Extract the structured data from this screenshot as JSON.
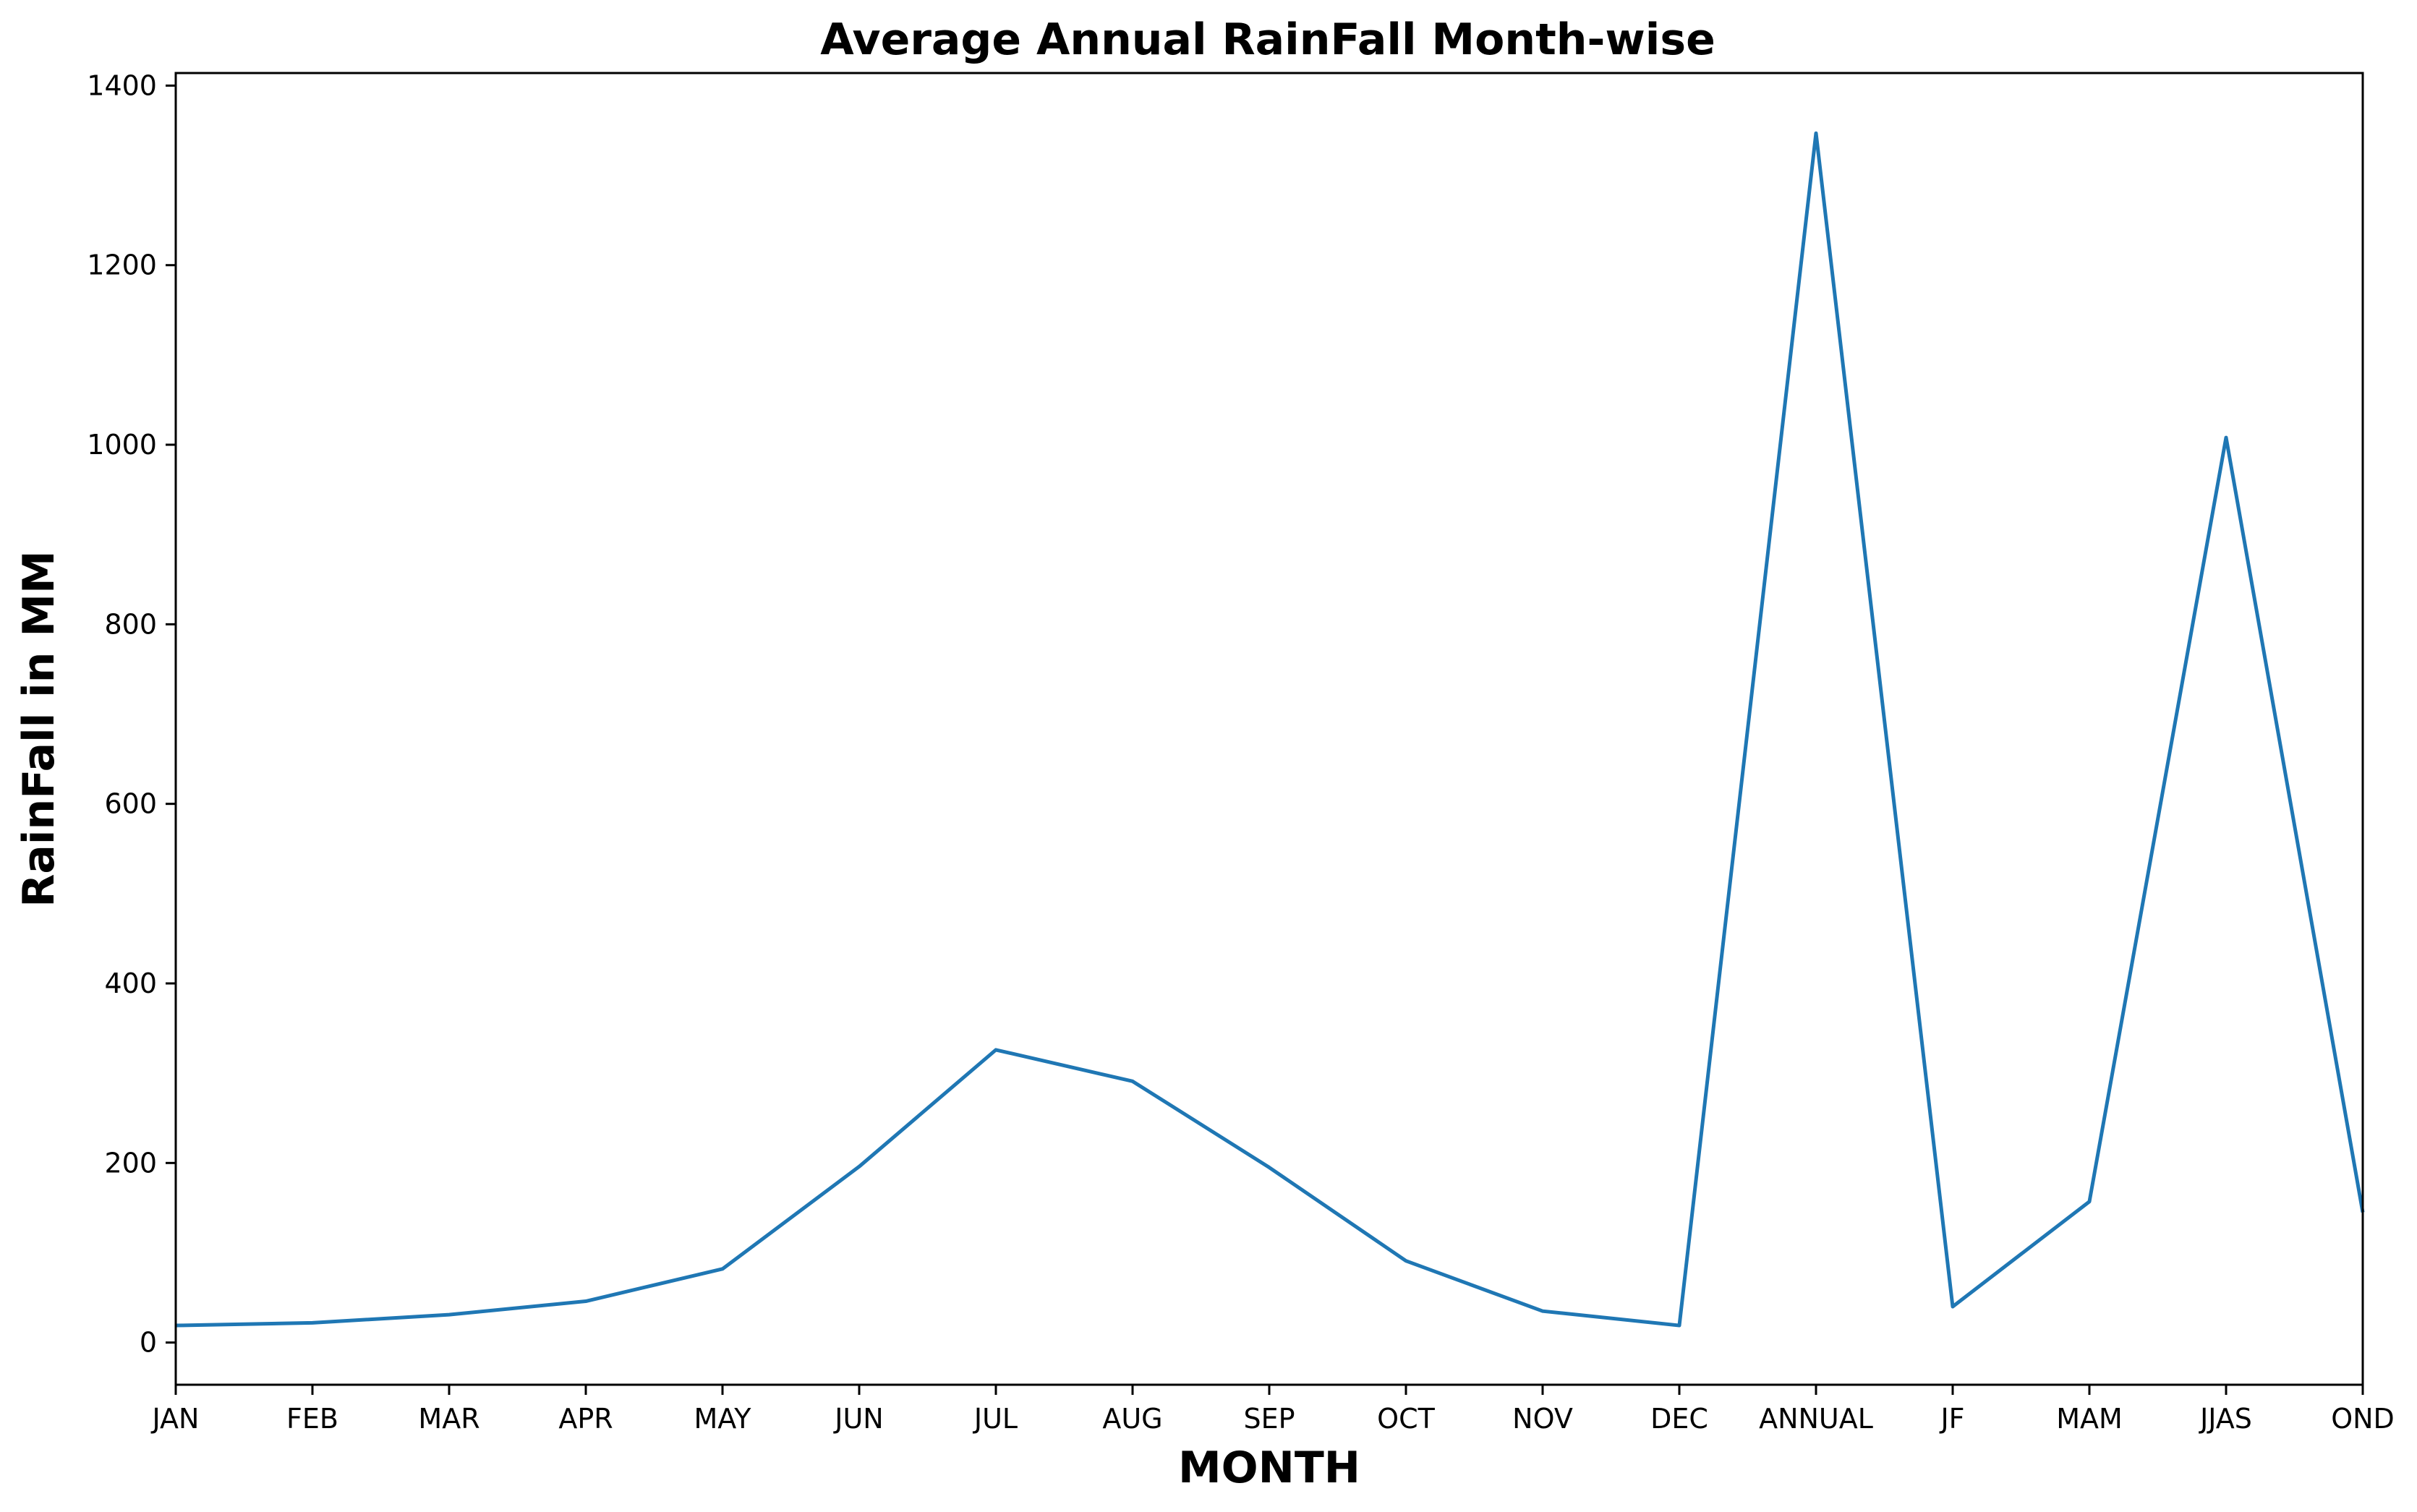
{
  "chart_data": {
    "type": "line",
    "title": "Average Annual RainFall Month-wise",
    "xlabel": "MONTH",
    "ylabel": "RainFall in MM",
    "categories": [
      "JAN",
      "FEB",
      "MAR",
      "APR",
      "MAY",
      "JUN",
      "JUL",
      "AUG",
      "SEP",
      "OCT",
      "NOV",
      "DEC",
      "ANNUAL",
      "JF",
      "MAM",
      "JJAS",
      "OND"
    ],
    "series": [
      {
        "values": [
          19,
          22,
          31,
          46,
          82,
          196,
          326,
          291,
          195,
          91,
          35,
          19,
          1347,
          40,
          157,
          1008,
          145
        ],
        "color": "#1f77b4"
      }
    ],
    "ylim": [
      -47,
      1414
    ],
    "yticks": [
      0,
      200,
      400,
      600,
      800,
      1000,
      1200,
      1400
    ],
    "grid": false,
    "legend": "none"
  }
}
